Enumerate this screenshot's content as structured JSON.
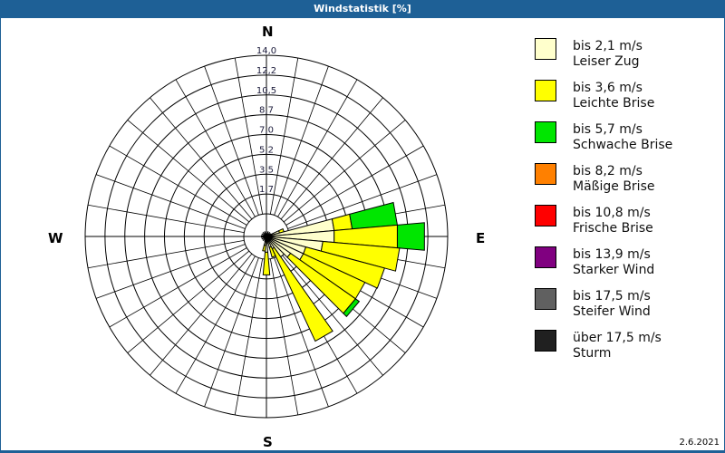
{
  "window": {
    "title": "Windstatistik [%]"
  },
  "compass": {
    "N": "N",
    "E": "E",
    "S": "S",
    "W": "W"
  },
  "date": "2.6.2021",
  "legend": [
    {
      "speed": "bis 2,1 m/s",
      "name": "Leiser Zug",
      "color": "#ffffcc"
    },
    {
      "speed": "bis 3,6 m/s",
      "name": "Leichte Brise",
      "color": "#ffff00"
    },
    {
      "speed": "bis 5,7 m/s",
      "name": "Schwache Brise",
      "color": "#00e600"
    },
    {
      "speed": "bis 8,2 m/s",
      "name": "Mäßige Brise",
      "color": "#ff8000"
    },
    {
      "speed": "bis 10,8 m/s",
      "name": "Frische Brise",
      "color": "#ff0000"
    },
    {
      "speed": "bis 13,9 m/s",
      "name": "Starker Wind",
      "color": "#800080"
    },
    {
      "speed": "bis 17,5 m/s",
      "name": "Steifer Wind",
      "color": "#606060"
    },
    {
      "speed": "über 17,5 m/s",
      "name": "Sturm",
      "color": "#202020"
    }
  ],
  "chart_data": {
    "type": "polar-stacked-bar (wind rose)",
    "title": "Windstatistik [%]",
    "unit": "%",
    "radial_ticks": [
      "1,7",
      "3,5",
      "5,2",
      "7,0",
      "8,7",
      "10,5",
      "12,2",
      "14,0"
    ],
    "rmax": 14.0,
    "directions_deg": [
      60,
      70,
      80,
      90,
      100,
      110,
      120,
      130,
      140,
      150,
      160,
      170,
      180,
      190
    ],
    "series": [
      {
        "name": "bis 2,1 m/s",
        "values": [
          0.4,
          1.2,
          6.0,
          6.0,
          5.0,
          3.6,
          3.6,
          2.6,
          2.2,
          1.2,
          1.0,
          0.6,
          1.4,
          0.8
        ]
      },
      {
        "name": "bis 3,6 m/s",
        "values": [
          0.0,
          0.4,
          1.6,
          5.6,
          6.8,
          7.2,
          6.0,
          7.0,
          0.0,
          9.0,
          0.9,
          0.0,
          2.0,
          0.5
        ]
      },
      {
        "name": "bis 5,7 m/s",
        "values": [
          0.0,
          0.0,
          4.0,
          2.4,
          0.0,
          0.0,
          0.0,
          0.4,
          0.0,
          0.0,
          0.0,
          0.0,
          0.0,
          0.0
        ]
      },
      {
        "name": "bis 8,2 m/s",
        "values": [
          0,
          0,
          0,
          0,
          0,
          0,
          0,
          0,
          0,
          0,
          0,
          0,
          0,
          0
        ]
      },
      {
        "name": "bis 10,8 m/s",
        "values": [
          0,
          0,
          0,
          0,
          0,
          0,
          0,
          0,
          0,
          0,
          0,
          0,
          0,
          0
        ]
      },
      {
        "name": "bis 13,9 m/s",
        "values": [
          0,
          0,
          0,
          0,
          0,
          0,
          0,
          0,
          0,
          0,
          0,
          0,
          0,
          0
        ]
      },
      {
        "name": "bis 17,5 m/s",
        "values": [
          0,
          0,
          0,
          0,
          0,
          0,
          0,
          0,
          0,
          0,
          0,
          0,
          0,
          0
        ]
      },
      {
        "name": "über 17,5 m/s",
        "values": [
          0,
          0,
          0,
          0,
          0,
          0,
          0,
          0,
          0,
          0,
          0,
          0,
          0,
          0
        ]
      }
    ],
    "legend_position": "right"
  }
}
